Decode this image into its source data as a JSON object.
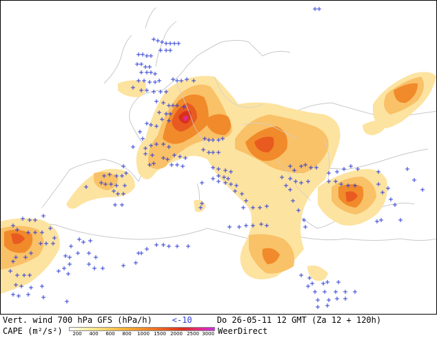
{
  "caption": {
    "line1_left": "Vert. wind 700 hPa GFS (hPa/h)",
    "line1_neg": "<-10",
    "line1_right": "Do 26-05-11 12 GMT (Za 12 + 120h)",
    "line2_left": "CAPE (m²/s²)",
    "scale_ticks": [
      "200",
      "400",
      "600",
      "800",
      "1000",
      "1500",
      "2000",
      "2500",
      "3000"
    ],
    "brand": "WeerDirect"
  },
  "colors": {
    "sea_bg": "#ffffff",
    "borders": "#c0c0c0",
    "plus_marker": "#2b3bd6",
    "cape_low": "#fde3a0",
    "cape_mid": "#f9c168",
    "cape_high": "#f18a2a",
    "cape_higher": "#e85a20",
    "cape_peak": "#d8311a",
    "cape_max": "#e12a8a"
  }
}
